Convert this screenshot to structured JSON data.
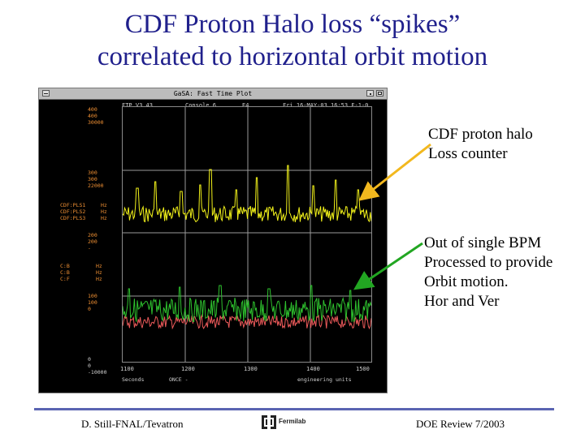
{
  "slide": {
    "title_line1": "CDF Proton Halo loss “spikes”",
    "title_line2": "correlated to horizontal orbit motion"
  },
  "window": {
    "title": "GaSA: Fast Time Plot",
    "status": {
      "left": "FTP V3.43",
      "console": "Console 6",
      "slot": "E4",
      "date": "Fri 16-MAY-03 16:53 F-1-0"
    },
    "scales": {
      "upper_top": [
        "400",
        "400",
        "30000"
      ],
      "upper_mid": [
        "300",
        "300",
        "22000"
      ],
      "upper_channels": [
        "CDF:PLS1",
        "CDF:PLS2",
        "CDF:PLS3"
      ],
      "upper_units": [
        "Hz",
        "Hz",
        "Hz"
      ],
      "lower_top": [
        "200",
        "200",
        "-"
      ],
      "lower_channels": [
        "C:B",
        "C:B",
        "C:F"
      ],
      "lower_units": [
        "Hz",
        "Hz",
        "Hz"
      ],
      "lower_mid": [
        "100",
        "100",
        "0"
      ],
      "bottom": [
        "0",
        "0",
        "-10000"
      ]
    },
    "x_ticks": [
      "1100",
      "1200",
      "1300",
      "1400",
      "1500"
    ],
    "bottom_status_left": "Seconds",
    "bottom_status_mid": "ONCE -",
    "bottom_status_right": "engineering units",
    "colors": {
      "halo_trace": "#f3f31a",
      "horizontal_trace": "#2ec12e",
      "vertical_trace": "#ec5a5a",
      "scale_orange": "#ee8f33",
      "scale_grey": "#cfcfcf"
    }
  },
  "callouts": {
    "halo": [
      "CDF proton halo",
      "Loss counter"
    ],
    "bpm": [
      "Out of single BPM",
      "Processed to provide",
      "Orbit motion.",
      "Hor and Ver"
    ],
    "halo_arrow_color": "#f2b81e",
    "bpm_arrow_color": "#22a622"
  },
  "footer": {
    "left": "D. Still-FNAL/Tevatron",
    "logo_text": "Fermilab",
    "right": "DOE Review 7/2003"
  }
}
